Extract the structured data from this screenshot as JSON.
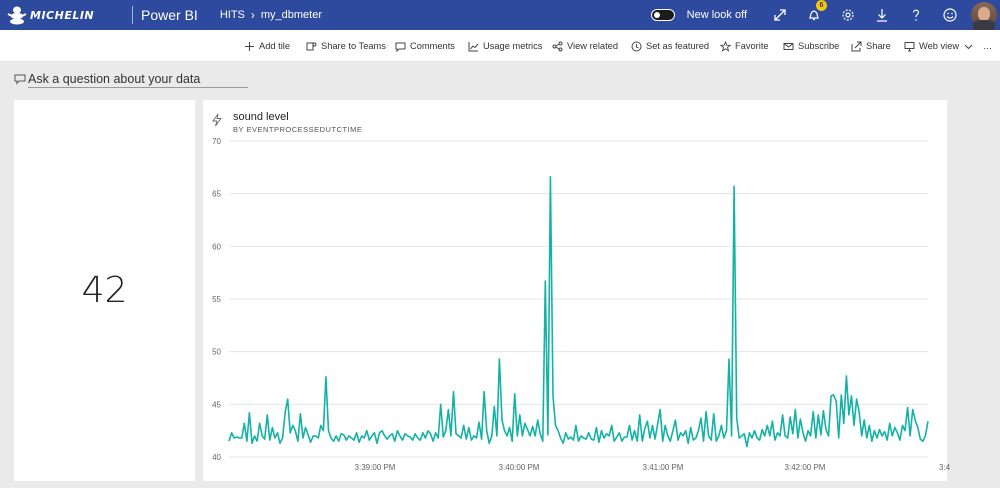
{
  "header": {
    "brand_text": "MICHELIN",
    "app_name": "Power BI",
    "breadcrumb": [
      "HITS",
      "my_dbmeter"
    ],
    "new_look_label": "New look off",
    "notification_count": "6",
    "bar_color": "#2e4a9e"
  },
  "toolbar": {
    "items": [
      {
        "label": "Add tile",
        "icon": "plus-icon"
      },
      {
        "label": "Share to Teams",
        "icon": "teams-icon"
      },
      {
        "label": "Comments",
        "icon": "comment-icon"
      },
      {
        "label": "Usage metrics",
        "icon": "line-chart-icon"
      },
      {
        "label": "View related",
        "icon": "related-icon"
      },
      {
        "label": "Set as featured",
        "icon": "featured-icon"
      },
      {
        "label": "Favorite",
        "icon": "star-icon"
      },
      {
        "label": "Subscribe",
        "icon": "mail-icon"
      },
      {
        "label": "Share",
        "icon": "share-icon"
      },
      {
        "label": "Web view",
        "icon": "monitor-icon"
      },
      {
        "label": "…",
        "icon": "more-icon"
      }
    ]
  },
  "qna": {
    "placeholder": "Ask a question about your data"
  },
  "kpi_tile": {
    "value": "42"
  },
  "chart_tile": {
    "title": "sound level",
    "subtitle": "BY EVENTPROCESSEDUTCTIME"
  },
  "chart_data": {
    "type": "line",
    "title": "sound level",
    "subtitle": "BY EVENTPROCESSEDUTCTIME",
    "line_color": "#14b2a4",
    "ylim": [
      40,
      70
    ],
    "yticks": [
      40,
      45,
      50,
      55,
      60,
      65,
      70
    ],
    "xticks": [
      "3:39:00 PM",
      "3:40:00 PM",
      "3:41:00 PM",
      "3:42:00 PM",
      "3:4"
    ],
    "grid": true,
    "series": [
      {
        "values": [
          41.5,
          42.3,
          41.8,
          41.9,
          41.8,
          41.8,
          43.2,
          41.5,
          44.2,
          41.3,
          42.0,
          41.5,
          43.2,
          42.0,
          41.7,
          44.0,
          41.6,
          42.8,
          41.8,
          42.3,
          41.3,
          41.8,
          44.2,
          45.5,
          42.3,
          43.0,
          42.5,
          41.5,
          44.1,
          41.8,
          42.8,
          42.1,
          41.4,
          42.0,
          42.0,
          41.8,
          43.0,
          42.5,
          47.6,
          42.5,
          41.8,
          41.5,
          42.0,
          41.5,
          42.2,
          42.1,
          41.6,
          42.0,
          41.8,
          41.6,
          42.3,
          41.4,
          42.0,
          41.8,
          42.5,
          41.6,
          42.0,
          42.3,
          41.3,
          42.3,
          42.5,
          42.0,
          41.7,
          42.0,
          42.2,
          41.5,
          42.5,
          42.0,
          41.6,
          42.2,
          42.0,
          41.9,
          41.6,
          42.2,
          41.8,
          41.6,
          42.3,
          41.8,
          42.5,
          42.2,
          41.5,
          42.3,
          41.8,
          45.0,
          41.9,
          42.5,
          44.5,
          42.0,
          46.2,
          42.2,
          42.0,
          41.8,
          43.0,
          41.7,
          42.8,
          41.6,
          42.0,
          41.8,
          43.3,
          41.7,
          46.2,
          42.5,
          41.3,
          42.0,
          44.8,
          42.0,
          49.3,
          43.5,
          42.5,
          42.0,
          42.8,
          41.5,
          46.0,
          42.0,
          44.0,
          42.0,
          43.2,
          42.6,
          42.0,
          42.9,
          42.0,
          43.5,
          42.2,
          41.5,
          56.7,
          42.1,
          66.6,
          45.8,
          43.0,
          42.5,
          41.8,
          41.3,
          42.3,
          41.7,
          41.9,
          41.6,
          43.0,
          41.5,
          42.0,
          41.8,
          41.7,
          42.3,
          41.7,
          41.6,
          42.8,
          41.4,
          42.5,
          41.8,
          42.2,
          42.0,
          43.0,
          41.5,
          41.9,
          42.3,
          41.5,
          41.9,
          41.9,
          43.0,
          41.6,
          42.5,
          41.5,
          44.0,
          41.5,
          42.7,
          43.4,
          41.8,
          43.0,
          41.7,
          43.1,
          44.5,
          41.5,
          43.0,
          42.0,
          41.5,
          42.5,
          43.5,
          41.6,
          42.3,
          42.0,
          42.5,
          41.3,
          42.8,
          41.6,
          41.8,
          42.5,
          43.7,
          41.5,
          44.3,
          42.0,
          41.6,
          44.1,
          41.5,
          42.0,
          43.0,
          41.8,
          42.5,
          49.3,
          42.0,
          65.7,
          43.7,
          41.8,
          42.0,
          42.2,
          41.0,
          42.3,
          41.8,
          42.5,
          41.8,
          41.6,
          42.6,
          42.0,
          43.0,
          42.0,
          43.4,
          41.6,
          42.3,
          42.0,
          44.0,
          42.0,
          41.8,
          43.8,
          42.2,
          44.5,
          41.8,
          43.6,
          42.3,
          41.5,
          42.5,
          42.0,
          44.3,
          41.8,
          44.0,
          42.1,
          44.4,
          42.6,
          42.0,
          45.8,
          45.9,
          45.3,
          41.8,
          45.9,
          43.2,
          47.7,
          44.0,
          45.8,
          43.0,
          45.5,
          44.3,
          42.0,
          43.5,
          41.8,
          43.0,
          41.5,
          42.5,
          41.8,
          42.6,
          42.0,
          42.4,
          41.6,
          43.2,
          42.0,
          42.8,
          42.3,
          41.6,
          43.0,
          42.5,
          44.7,
          42.0,
          44.5,
          43.5,
          42.8,
          41.7,
          41.5,
          42.0,
          43.4
        ]
      }
    ]
  }
}
